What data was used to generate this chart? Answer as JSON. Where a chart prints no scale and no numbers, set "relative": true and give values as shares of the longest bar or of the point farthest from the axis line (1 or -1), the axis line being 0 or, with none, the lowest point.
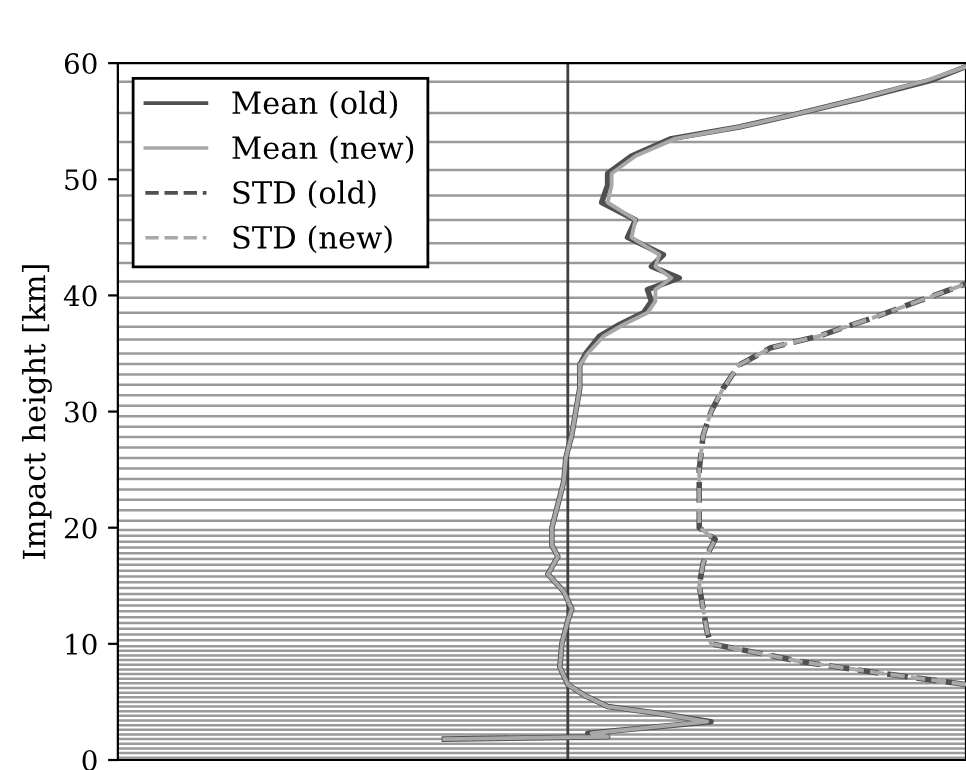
{
  "chart_data": {
    "type": "line",
    "orientation": "horizontal",
    "relative": true,
    "ylabel": "Impact height [km]",
    "ylim": [
      0,
      60
    ],
    "yticks": [
      0,
      10,
      20,
      30,
      40,
      50,
      60
    ],
    "tick_labels": "y",
    "legend": "top left",
    "grid": false,
    "x": [
      1.8,
      2.0,
      2.3,
      3.3,
      4.0,
      4.6,
      5.5,
      6.5,
      8,
      10,
      12,
      13,
      14.5,
      16,
      17.5,
      18.5,
      20,
      22,
      24,
      26,
      28,
      30,
      32,
      34,
      35,
      36.5,
      37.5,
      38.5,
      39.5,
      40.5,
      41.5,
      42.5,
      43.5,
      45,
      46.5,
      48,
      49.5,
      50.5,
      52,
      53.5,
      54.5,
      55.5,
      57,
      58.5,
      59.7
    ],
    "series": [
      {
        "name": "Mean (old)",
        "color": "#505050",
        "line_style": "solid",
        "values": [
          -0.31,
          0.1,
          0.05,
          0.36,
          0.23,
          0.1,
          0.045,
          0,
          -0.02,
          -0.015,
          0,
          0.01,
          -0.01,
          -0.05,
          -0.025,
          -0.04,
          -0.04,
          -0.025,
          -0.01,
          -0.005,
          0.01,
          0.02,
          0.03,
          0.03,
          0.045,
          0.08,
          0.13,
          0.19,
          0.21,
          0.2,
          0.28,
          0.21,
          0.24,
          0.15,
          0.17,
          0.085,
          0.1,
          0.1,
          0.16,
          0.26,
          0.43,
          0.56,
          0.74,
          0.91,
          1.0
        ]
      },
      {
        "name": "Mean (new)",
        "color": "#a8a8a8",
        "line_style": "solid",
        "values": [
          -0.31,
          0.1,
          0.06,
          0.35,
          0.23,
          0.1,
          0.045,
          0,
          -0.02,
          -0.015,
          0,
          0.01,
          -0.01,
          -0.05,
          -0.025,
          -0.04,
          -0.04,
          -0.025,
          -0.01,
          -0.005,
          0.01,
          0.02,
          0.03,
          0.03,
          0.05,
          0.09,
          0.14,
          0.2,
          0.22,
          0.22,
          0.26,
          0.22,
          0.23,
          0.16,
          0.17,
          0.1,
          0.11,
          0.11,
          0.17,
          0.27,
          0.43,
          0.56,
          0.74,
          0.9,
          1.0
        ]
      },
      {
        "name": "STD (old)",
        "color": "#505050",
        "line_style": "dashed",
        "x": [
          6.5,
          7.5,
          8.5,
          9.2,
          10,
          11,
          13,
          15,
          17,
          19,
          20,
          22,
          25,
          28,
          30,
          32,
          34,
          35.5,
          36.5,
          38,
          39.5,
          41
        ],
        "values": [
          1.0,
          0.78,
          0.58,
          0.48,
          0.36,
          0.35,
          0.34,
          0.33,
          0.34,
          0.37,
          0.33,
          0.33,
          0.33,
          0.34,
          0.36,
          0.39,
          0.43,
          0.51,
          0.63,
          0.76,
          0.88,
          1.0
        ]
      },
      {
        "name": "STD (new)",
        "color": "#a8a8a8",
        "line_style": "dashed",
        "x": [
          6.5,
          7.5,
          8.5,
          9.2,
          10,
          11,
          13,
          15,
          17,
          19,
          20,
          22,
          25,
          28,
          30,
          32,
          34,
          35.5,
          36.5,
          38,
          39.5,
          41
        ],
        "values": [
          1.0,
          0.78,
          0.58,
          0.48,
          0.36,
          0.35,
          0.34,
          0.33,
          0.34,
          0.37,
          0.33,
          0.33,
          0.33,
          0.34,
          0.36,
          0.39,
          0.43,
          0.51,
          0.63,
          0.76,
          0.88,
          1.0
        ]
      }
    ],
    "ref_lines": [
      {
        "axis": "y",
        "value": 0.2
      },
      {
        "axis": "y",
        "value": 0.6
      },
      {
        "axis": "y",
        "value": 1.0
      },
      {
        "axis": "y",
        "value": 1.4
      },
      {
        "axis": "y",
        "value": 1.8
      },
      {
        "axis": "y",
        "value": 2.2
      },
      {
        "axis": "y",
        "value": 2.6
      },
      {
        "axis": "y",
        "value": 3.0
      },
      {
        "axis": "y",
        "value": 3.4
      },
      {
        "axis": "y",
        "value": 3.8
      },
      {
        "axis": "y",
        "value": 4.2
      },
      {
        "axis": "y",
        "value": 4.6
      },
      {
        "axis": "y",
        "value": 5.0
      },
      {
        "axis": "y",
        "value": 5.4
      },
      {
        "axis": "y",
        "value": 5.8
      },
      {
        "axis": "y",
        "value": 6.2
      },
      {
        "axis": "y",
        "value": 6.6
      },
      {
        "axis": "y",
        "value": 7.0
      },
      {
        "axis": "y",
        "value": 7.4
      },
      {
        "axis": "y",
        "value": 7.8
      },
      {
        "axis": "y",
        "value": 8.2
      },
      {
        "axis": "y",
        "value": 8.6
      },
      {
        "axis": "y",
        "value": 9.0
      },
      {
        "axis": "y",
        "value": 9.4
      },
      {
        "axis": "y",
        "value": 9.8
      },
      {
        "axis": "y",
        "value": 10.3
      },
      {
        "axis": "y",
        "value": 10.8
      },
      {
        "axis": "y",
        "value": 11.3
      },
      {
        "axis": "y",
        "value": 11.8
      },
      {
        "axis": "y",
        "value": 12.3
      },
      {
        "axis": "y",
        "value": 12.8
      },
      {
        "axis": "y",
        "value": 13.3
      },
      {
        "axis": "y",
        "value": 13.8
      },
      {
        "axis": "y",
        "value": 14.3
      },
      {
        "axis": "y",
        "value": 14.8
      },
      {
        "axis": "y",
        "value": 15.3
      },
      {
        "axis": "y",
        "value": 15.8
      },
      {
        "axis": "y",
        "value": 16.3
      },
      {
        "axis": "y",
        "value": 16.8
      },
      {
        "axis": "y",
        "value": 17.3
      },
      {
        "axis": "y",
        "value": 17.8
      },
      {
        "axis": "y",
        "value": 18.3
      },
      {
        "axis": "y",
        "value": 18.8
      },
      {
        "axis": "y",
        "value": 19.3
      },
      {
        "axis": "y",
        "value": 19.8
      },
      {
        "axis": "y",
        "value": 20.6
      },
      {
        "axis": "y",
        "value": 21.5
      },
      {
        "axis": "y",
        "value": 22.4
      },
      {
        "axis": "y",
        "value": 23.3
      },
      {
        "axis": "y",
        "value": 24.2
      },
      {
        "axis": "y",
        "value": 25.1
      },
      {
        "axis": "y",
        "value": 26.0
      },
      {
        "axis": "y",
        "value": 26.9
      },
      {
        "axis": "y",
        "value": 27.8
      },
      {
        "axis": "y",
        "value": 28.7
      },
      {
        "axis": "y",
        "value": 29.6
      },
      {
        "axis": "y",
        "value": 30.5
      },
      {
        "axis": "y",
        "value": 31.4
      },
      {
        "axis": "y",
        "value": 32.3
      },
      {
        "axis": "y",
        "value": 33.2
      },
      {
        "axis": "y",
        "value": 34.1
      },
      {
        "axis": "y",
        "value": 35.0
      },
      {
        "axis": "y",
        "value": 36.2
      },
      {
        "axis": "y",
        "value": 37.3
      },
      {
        "axis": "y",
        "value": 38.5
      },
      {
        "axis": "y",
        "value": 39.8
      },
      {
        "axis": "y",
        "value": 41.2
      },
      {
        "axis": "y",
        "value": 42.8
      },
      {
        "axis": "y",
        "value": 44.5
      },
      {
        "axis": "y",
        "value": 46.5
      },
      {
        "axis": "y",
        "value": 48.6
      },
      {
        "axis": "y",
        "value": 50.8
      },
      {
        "axis": "y",
        "value": 53.2
      },
      {
        "axis": "y",
        "value": 55.7
      },
      {
        "axis": "y",
        "value": 58.4
      }
    ]
  }
}
